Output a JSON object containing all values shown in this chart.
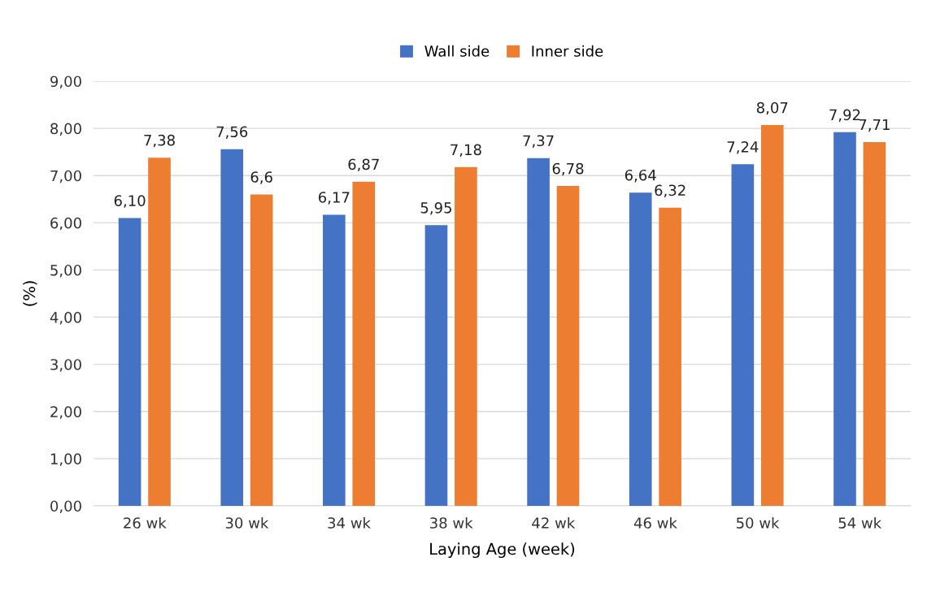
{
  "chart_data": {
    "type": "bar",
    "xlabel": "Laying Age (week)",
    "ylabel": "(%)",
    "categories": [
      "26 wk",
      "30 wk",
      "34 wk",
      "38 wk",
      "42 wk",
      "46 wk",
      "50 wk",
      "54 wk"
    ],
    "series": [
      {
        "name": "Wall side",
        "color": "#4472c4",
        "values": [
          6.1,
          7.56,
          6.17,
          5.95,
          7.37,
          6.64,
          7.24,
          7.92
        ],
        "value_labels": [
          "6,10",
          "7,56",
          "6,17",
          "5,95",
          "7,37",
          "6,64",
          "7,24",
          "7,92"
        ]
      },
      {
        "name": "Inner side",
        "color": "#ed7d31",
        "values": [
          7.38,
          6.6,
          6.87,
          7.18,
          6.78,
          6.32,
          8.07,
          7.71
        ],
        "value_labels": [
          "7,38",
          "6,6",
          "6,87",
          "7,18",
          "6,78",
          "6,32",
          "8,07",
          "7,71"
        ]
      }
    ],
    "ylim": [
      0,
      9
    ],
    "yticks": [
      {
        "value": 0,
        "label": "0,00"
      },
      {
        "value": 1,
        "label": "1,00"
      },
      {
        "value": 2,
        "label": "2,00"
      },
      {
        "value": 3,
        "label": "3,00"
      },
      {
        "value": 4,
        "label": "4,00"
      },
      {
        "value": 5,
        "label": "5,00"
      },
      {
        "value": 6,
        "label": "6,00"
      },
      {
        "value": 7,
        "label": "7,00"
      },
      {
        "value": 8,
        "label": "8,00"
      },
      {
        "value": 9,
        "label": "9,00"
      }
    ],
    "grid": "y",
    "legend": "top"
  }
}
